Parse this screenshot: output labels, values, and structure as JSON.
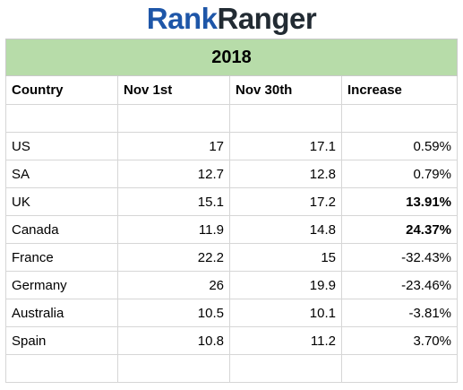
{
  "logo": {
    "part1": "Rank",
    "part2": "Ranger"
  },
  "table": {
    "year": "2018",
    "headers": [
      "Country",
      "Nov 1st",
      "Nov 30th",
      "Increase"
    ],
    "rows": [
      {
        "country": "US",
        "nov1": "17",
        "nov30": "17.1",
        "increase": "0.59%",
        "highlight": false
      },
      {
        "country": "SA",
        "nov1": "12.7",
        "nov30": "12.8",
        "increase": "0.79%",
        "highlight": false
      },
      {
        "country": "UK",
        "nov1": "15.1",
        "nov30": "17.2",
        "increase": "13.91%",
        "highlight": true
      },
      {
        "country": "Canada",
        "nov1": "11.9",
        "nov30": "14.8",
        "increase": "24.37%",
        "highlight": true
      },
      {
        "country": "France",
        "nov1": "22.2",
        "nov30": "15",
        "increase": "-32.43%",
        "highlight": false
      },
      {
        "country": "Germany",
        "nov1": "26",
        "nov30": "19.9",
        "increase": "-23.46%",
        "highlight": false
      },
      {
        "country": "Australia",
        "nov1": "10.5",
        "nov30": "10.1",
        "increase": "-3.81%",
        "highlight": false
      },
      {
        "country": "Spain",
        "nov1": "10.8",
        "nov30": "11.2",
        "increase": "3.70%",
        "highlight": false
      }
    ]
  },
  "colors": {
    "year_band": "#b7dca9",
    "logo_blue": "#1e56a8",
    "logo_dark": "#222b33",
    "grid": "#d6d6d6"
  }
}
